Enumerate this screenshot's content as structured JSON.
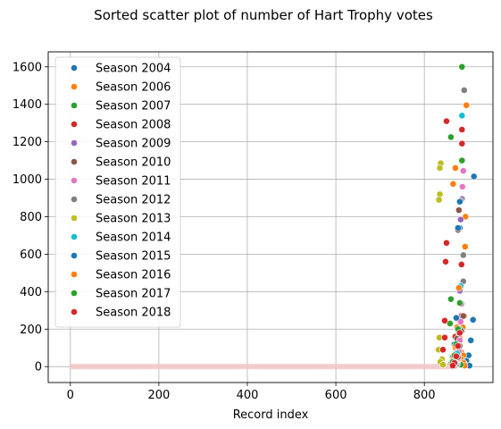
{
  "chart_data": {
    "type": "scatter",
    "title": "Sorted scatter plot of number of Hart Trophy votes",
    "xlabel": "Record index",
    "ylabel": "",
    "xlim": [
      -50,
      955
    ],
    "ylim": [
      -85,
      1680
    ],
    "xticks": [
      0,
      200,
      400,
      600,
      800
    ],
    "yticks": [
      0,
      200,
      400,
      600,
      800,
      1000,
      1200,
      1400,
      1600
    ],
    "grid": true,
    "legend_position": "upper-left",
    "zero_band": {
      "x_start": 0,
      "x_end": 870,
      "color": "#f3c7c7"
    },
    "series": [
      {
        "name": "Season 2004",
        "color": "#1f77b4",
        "points": [
          [
            912,
            1015
          ],
          [
            885,
            890
          ],
          [
            880,
            740
          ],
          [
            910,
            250
          ],
          [
            905,
            140
          ],
          [
            900,
            60
          ],
          [
            895,
            30
          ],
          [
            890,
            15
          ],
          [
            902,
            5
          ]
        ]
      },
      {
        "name": "Season 2006",
        "color": "#ff7f0e",
        "points": [
          [
            895,
            1395
          ],
          [
            870,
            1060
          ],
          [
            865,
            975
          ],
          [
            893,
            800
          ],
          [
            892,
            640
          ],
          [
            890,
            270
          ],
          [
            887,
            210
          ],
          [
            880,
            150
          ],
          [
            875,
            120
          ],
          [
            870,
            100
          ],
          [
            884,
            75
          ],
          [
            888,
            60
          ],
          [
            883,
            40
          ],
          [
            889,
            20
          ],
          [
            891,
            5
          ]
        ]
      },
      {
        "name": "Season 2007",
        "color": "#2ca02c",
        "points": [
          [
            885,
            1600
          ],
          [
            860,
            1225
          ],
          [
            885,
            1100
          ],
          [
            860,
            360
          ],
          [
            858,
            230
          ],
          [
            880,
            200
          ],
          [
            878,
            100
          ],
          [
            876,
            60
          ],
          [
            874,
            30
          ],
          [
            882,
            10
          ]
        ]
      },
      {
        "name": "Season 2008",
        "color": "#d62728",
        "points": [
          [
            850,
            1310
          ],
          [
            885,
            1265
          ],
          [
            885,
            1190
          ],
          [
            850,
            660
          ],
          [
            848,
            560
          ],
          [
            884,
            545
          ],
          [
            883,
            270
          ],
          [
            846,
            245
          ],
          [
            870,
            160
          ],
          [
            878,
            90
          ],
          [
            866,
            50
          ],
          [
            874,
            20
          ],
          [
            868,
            5
          ]
        ]
      },
      {
        "name": "Season 2009",
        "color": "#9467bd",
        "points": [
          [
            885,
            895
          ],
          [
            882,
            785
          ],
          [
            880,
            405
          ],
          [
            878,
            260
          ],
          [
            876,
            120
          ],
          [
            874,
            60
          ],
          [
            872,
            25
          ],
          [
            870,
            5
          ]
        ]
      },
      {
        "name": "Season 2010",
        "color": "#8c564b",
        "points": [
          [
            878,
            835
          ],
          [
            876,
            730
          ],
          [
            888,
            270
          ],
          [
            874,
            150
          ],
          [
            872,
            70
          ],
          [
            870,
            30
          ],
          [
            868,
            10
          ]
        ]
      },
      {
        "name": "Season 2011",
        "color": "#e377c2",
        "points": [
          [
            888,
            1045
          ],
          [
            886,
            960
          ],
          [
            884,
            335
          ],
          [
            882,
            240
          ],
          [
            880,
            140
          ],
          [
            878,
            80
          ],
          [
            876,
            40
          ],
          [
            874,
            12
          ]
        ]
      },
      {
        "name": "Season 2012",
        "color": "#7f7f7f",
        "points": [
          [
            890,
            1475
          ],
          [
            882,
            885
          ],
          [
            888,
            595
          ],
          [
            888,
            455
          ],
          [
            884,
            190
          ],
          [
            880,
            110
          ],
          [
            876,
            50
          ],
          [
            872,
            15
          ]
        ]
      },
      {
        "name": "Season 2013",
        "color": "#bcbd22",
        "points": [
          [
            837,
            1085
          ],
          [
            835,
            1060
          ],
          [
            835,
            920
          ],
          [
            833,
            890
          ],
          [
            834,
            155
          ],
          [
            832,
            90
          ],
          [
            840,
            40
          ],
          [
            836,
            25
          ],
          [
            842,
            10
          ]
        ]
      },
      {
        "name": "Season 2014",
        "color": "#17becf",
        "points": [
          [
            885,
            1340
          ],
          [
            882,
            430
          ],
          [
            878,
            180
          ],
          [
            874,
            70
          ],
          [
            870,
            20
          ]
        ]
      },
      {
        "name": "Season 2015",
        "color": "#1f77b4",
        "points": [
          [
            880,
            880
          ],
          [
            876,
            740
          ],
          [
            872,
            260
          ],
          [
            868,
            120
          ],
          [
            864,
            50
          ],
          [
            860,
            15
          ]
        ]
      },
      {
        "name": "Season 2016",
        "color": "#ff7f0e",
        "points": [
          [
            878,
            420
          ],
          [
            874,
            210
          ],
          [
            870,
            110
          ],
          [
            866,
            45
          ],
          [
            862,
            12
          ]
        ]
      },
      {
        "name": "Season 2017",
        "color": "#2ca02c",
        "points": [
          [
            880,
            340
          ],
          [
            876,
            200
          ],
          [
            872,
            120
          ],
          [
            868,
            60
          ],
          [
            864,
            25
          ]
        ]
      },
      {
        "name": "Season 2018",
        "color": "#d62728",
        "points": [
          [
            846,
            155
          ],
          [
            842,
            90
          ],
          [
            880,
            180
          ],
          [
            876,
            110
          ],
          [
            872,
            55
          ],
          [
            868,
            20
          ],
          [
            864,
            5
          ]
        ]
      }
    ]
  }
}
